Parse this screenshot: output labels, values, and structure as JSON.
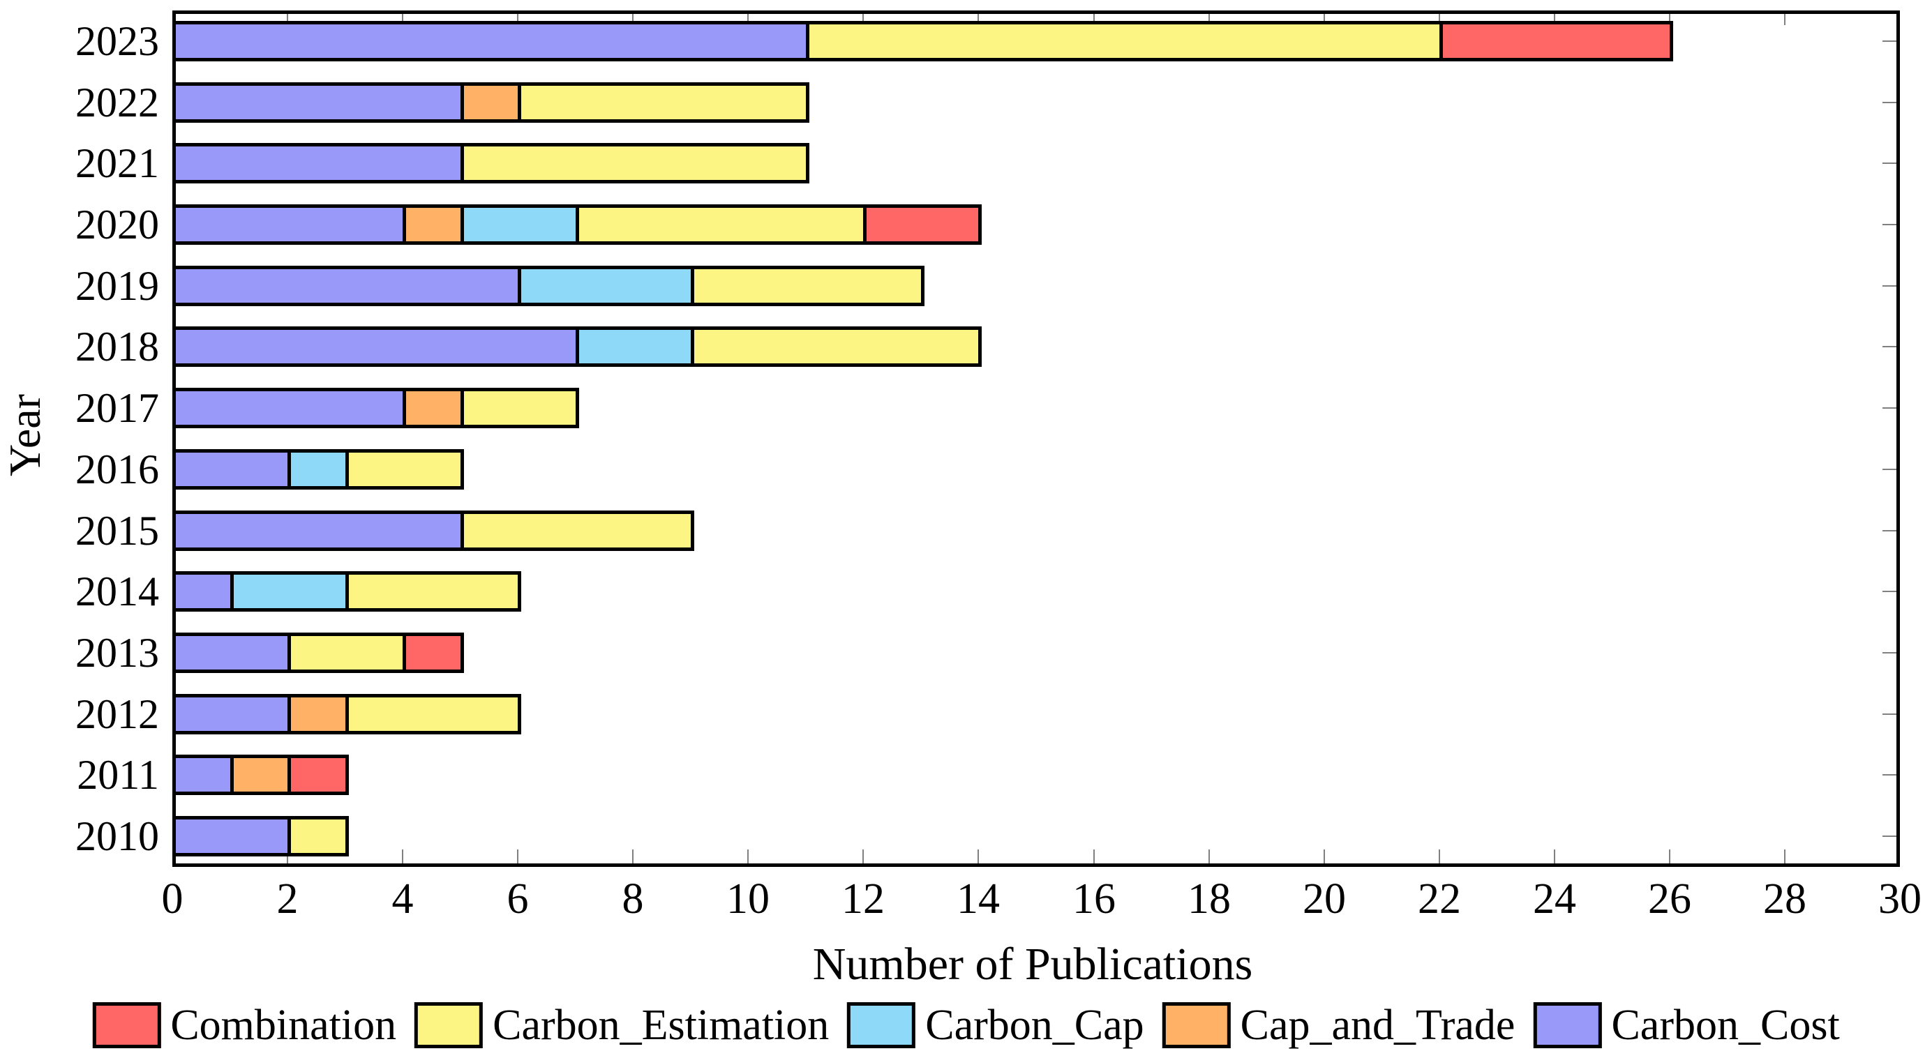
{
  "figure": {
    "background_color": "#FFFFFF",
    "frame_color": "#000000",
    "tick_color": "#808080"
  },
  "chart_data": {
    "type": "bar",
    "orientation": "horizontal",
    "stacked": true,
    "title": "",
    "xlabel": "Number of Publications",
    "ylabel": "Year",
    "xlim": [
      0,
      30
    ],
    "x_ticks": [
      0,
      2,
      4,
      6,
      8,
      10,
      12,
      14,
      16,
      18,
      20,
      22,
      24,
      26,
      28,
      30
    ],
    "grid": false,
    "categories": [
      "2023",
      "2022",
      "2021",
      "2020",
      "2019",
      "2018",
      "2017",
      "2016",
      "2015",
      "2014",
      "2013",
      "2012",
      "2011",
      "2010"
    ],
    "series": [
      {
        "name": "Carbon_Cost",
        "color": "#9999FA",
        "values": [
          11,
          5,
          5,
          4,
          6,
          7,
          4,
          2,
          5,
          1,
          2,
          2,
          1,
          2
        ]
      },
      {
        "name": "Cap_and_Trade",
        "color": "#FFB266",
        "values": [
          0,
          1,
          0,
          1,
          0,
          0,
          1,
          0,
          0,
          0,
          0,
          1,
          1,
          0
        ]
      },
      {
        "name": "Carbon_Cap",
        "color": "#8DD9F7",
        "values": [
          0,
          0,
          0,
          2,
          3,
          2,
          0,
          1,
          0,
          2,
          0,
          0,
          0,
          0
        ]
      },
      {
        "name": "Carbon_Estimation",
        "color": "#FCF584",
        "values": [
          11,
          5,
          6,
          5,
          4,
          5,
          2,
          2,
          4,
          3,
          2,
          3,
          0,
          1
        ]
      },
      {
        "name": "Combination",
        "color": "#FF6666",
        "values": [
          4,
          0,
          0,
          2,
          0,
          0,
          0,
          0,
          0,
          0,
          1,
          0,
          1,
          0
        ]
      }
    ],
    "totals": [
      26,
      11,
      11,
      14,
      13,
      14,
      7,
      5,
      9,
      6,
      5,
      6,
      3,
      3
    ],
    "legend": {
      "position": "below-chart",
      "entries": [
        {
          "label": "Combination",
          "color": "#FF6666"
        },
        {
          "label": "Carbon_Estimation",
          "color": "#FCF584"
        },
        {
          "label": "Carbon_Cap",
          "color": "#8DD9F7"
        },
        {
          "label": "Cap_and_Trade",
          "color": "#FFB266"
        },
        {
          "label": "Carbon_Cost",
          "color": "#9999FA"
        }
      ]
    }
  }
}
